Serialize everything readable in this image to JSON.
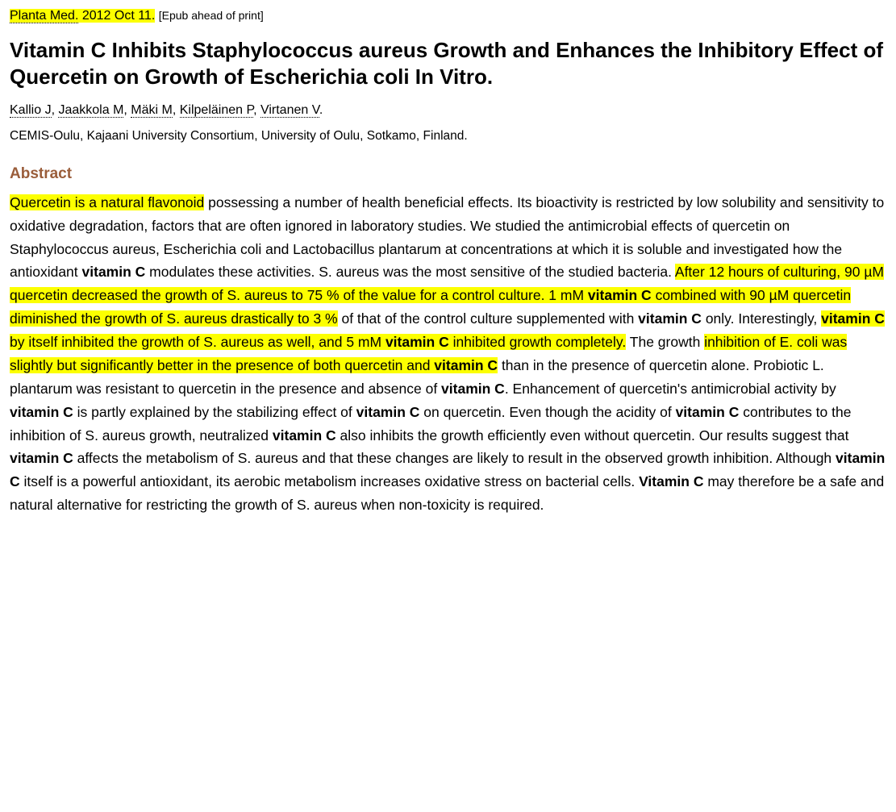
{
  "citation": {
    "journal": "Planta Med.",
    "date": "2012 Oct 11.",
    "epub_label": "[Epub ahead of print]"
  },
  "title": "Vitamin C Inhibits Staphylococcus aureus Growth and Enhances the Inhibitory Effect of Quercetin on Growth of Escherichia coli In Vitro.",
  "authors": [
    "Kallio J",
    "Jaakkola M",
    "Mäki M",
    "Kilpeläinen P",
    "Virtanen V"
  ],
  "affiliation": "CEMIS-Oulu, Kajaani University Consortium, University of Oulu, Sotkamo, Finland.",
  "abstract_heading": "Abstract",
  "abstract_segments": [
    {
      "t": "Quercetin is a natural flavonoid",
      "hl": true
    },
    {
      "t": " possessing a number of health beneficial effects. Its bioactivity is restricted by low solubility and sensitivity to oxidative degradation, factors that are often ignored in laboratory studies. We studied the antimicrobial effects of quercetin on Staphylococcus aureus, Escherichia coli and Lactobacillus plantarum at concentrations at which it is soluble and investigated how the antioxidant "
    },
    {
      "t": "vitamin C",
      "b": true
    },
    {
      "t": " modulates these activities. S. aureus was the most sensitive of the studied bacteria. "
    },
    {
      "t": "After 12 hours of culturing, 90 µM quercetin decreased the growth of S. aureus to 75 % of the value for a control culture. 1 mM ",
      "hl": true
    },
    {
      "t": "vitamin C",
      "hl": true,
      "b": true
    },
    {
      "t": " combined with 90 µM quercetin diminished the growth of S. aureus drastically to 3 %",
      "hl": true
    },
    {
      "t": " of that of the control culture supplemented with "
    },
    {
      "t": "vitamin C",
      "b": true
    },
    {
      "t": " only. Interestingly, "
    },
    {
      "t": "vitamin C",
      "hl": true,
      "b": true
    },
    {
      "t": " by itself inhibited the growth of S. aureus as well, and 5 mM ",
      "hl": true
    },
    {
      "t": "vitamin C",
      "hl": true,
      "b": true
    },
    {
      "t": " inhibited growth completely.",
      "hl": true
    },
    {
      "t": " The growth "
    },
    {
      "t": "inhibition of E. coli was slightly but significantly better in the presence of both quercetin and ",
      "hl": true
    },
    {
      "t": "vitamin C",
      "hl": true,
      "b": true
    },
    {
      "t": " than in the presence of quercetin alone. Probiotic L. plantarum was resistant to quercetin in the presence and absence of "
    },
    {
      "t": "vitamin C",
      "b": true
    },
    {
      "t": ". Enhancement of quercetin's antimicrobial activity by "
    },
    {
      "t": "vitamin C",
      "b": true
    },
    {
      "t": " is partly explained by the stabilizing effect of "
    },
    {
      "t": "vitamin C",
      "b": true
    },
    {
      "t": " on quercetin. Even though the acidity of "
    },
    {
      "t": "vitamin C",
      "b": true
    },
    {
      "t": " contributes to the inhibition of S. aureus growth, neutralized "
    },
    {
      "t": "vitamin C",
      "b": true
    },
    {
      "t": " also inhibits the growth efficiently even without quercetin. Our results suggest that "
    },
    {
      "t": "vitamin C",
      "b": true
    },
    {
      "t": " affects the metabolism of S. aureus and that these changes are likely to result in the observed growth inhibition. Although "
    },
    {
      "t": "vitamin C",
      "b": true
    },
    {
      "t": " itself is a powerful antioxidant, its aerobic metabolism increases oxidative stress on bacterial cells. "
    },
    {
      "t": "Vitamin C",
      "b": true
    },
    {
      "t": " may therefore be a safe and natural alternative for restricting the growth of S. aureus when non-toxicity is required."
    }
  ],
  "highlight_color": "#fcff00"
}
